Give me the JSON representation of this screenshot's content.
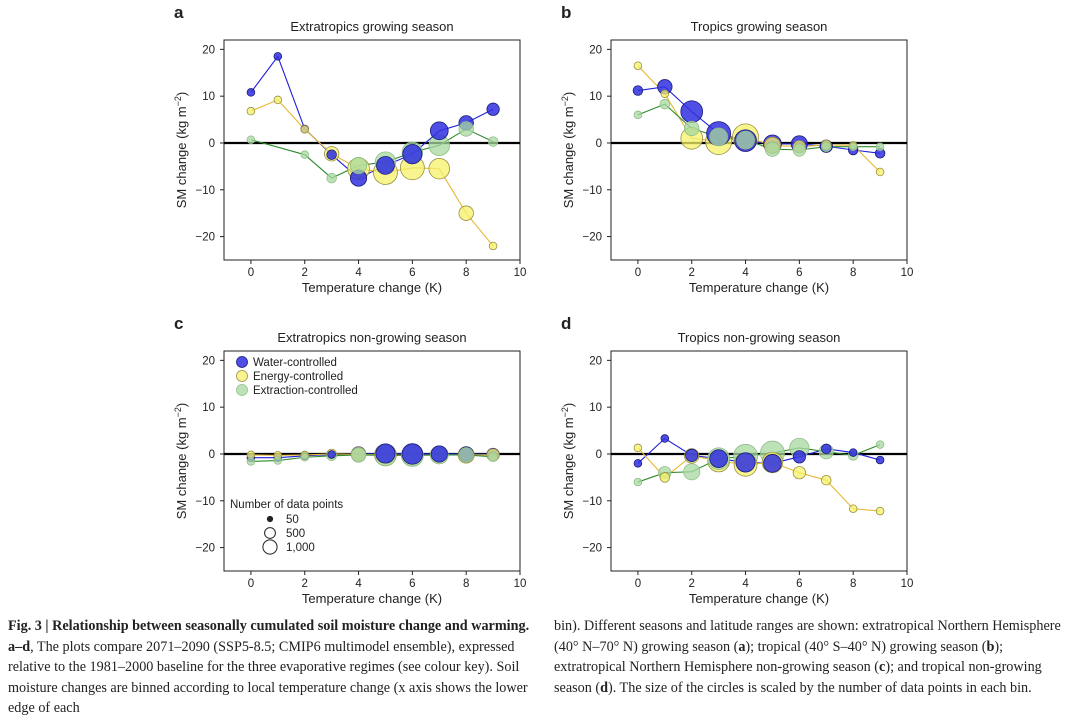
{
  "chart_data": [
    {
      "type": "line",
      "panel_letter": "a",
      "title": "Extratropics growing season",
      "xlabel": "Temperature change (K)",
      "ylabel": "SM change (kg m−2)",
      "xlim": [
        -1,
        10
      ],
      "ylim": [
        -25,
        22
      ],
      "xticks": [
        0,
        2,
        4,
        6,
        8,
        10
      ],
      "yticks": [
        -20,
        -10,
        0,
        10,
        20
      ],
      "series": [
        {
          "name": "Water-controlled",
          "color": "#2020d8",
          "x": [
            0,
            1,
            2,
            3,
            4,
            5,
            6,
            7,
            8,
            9
          ],
          "y": [
            10.8,
            18.5,
            3.0,
            -2.5,
            -7.5,
            -4.8,
            -2.4,
            2.6,
            4.3,
            7.2
          ],
          "n": [
            50,
            50,
            50,
            100,
            400,
            500,
            600,
            500,
            300,
            200
          ]
        },
        {
          "name": "Energy-controlled",
          "color": "#e8b830",
          "x": [
            0,
            1,
            2,
            3,
            4,
            5,
            6,
            7,
            8,
            9
          ],
          "y": [
            6.8,
            9.2,
            2.9,
            -2.3,
            -5.5,
            -6.3,
            -5.3,
            -5.5,
            -15.0,
            -22.0
          ],
          "n": [
            50,
            50,
            50,
            300,
            800,
            1000,
            1000,
            700,
            300,
            50
          ]
        },
        {
          "name": "Extraction-controlled",
          "color": "#2e8b2e",
          "x": [
            0,
            2,
            3,
            4,
            5,
            6,
            7,
            8,
            9
          ],
          "y": [
            0.7,
            -2.5,
            -7.5,
            -4.8,
            -4.1,
            -2.0,
            -0.5,
            3.0,
            0.3
          ],
          "n": [
            50,
            50,
            100,
            400,
            700,
            700,
            700,
            300,
            100
          ]
        }
      ]
    },
    {
      "type": "line",
      "panel_letter": "b",
      "title": "Tropics growing season",
      "xlabel": "Temperature change (K)",
      "ylabel": "SM change (kg m−2)",
      "xlim": [
        -1,
        10
      ],
      "ylim": [
        -25,
        22
      ],
      "xticks": [
        0,
        2,
        4,
        6,
        8,
        10
      ],
      "yticks": [
        -20,
        -10,
        0,
        10,
        20
      ],
      "series": [
        {
          "name": "Water-controlled",
          "color": "#2020d8",
          "x": [
            0,
            1,
            2,
            3,
            4,
            5,
            6,
            7,
            8,
            9
          ],
          "y": [
            11.2,
            12.0,
            6.7,
            2.0,
            0.5,
            -0.2,
            -0.2,
            -0.7,
            -1.5,
            -2.2
          ],
          "n": [
            100,
            300,
            800,
            1000,
            800,
            500,
            400,
            200,
            100,
            100
          ]
        },
        {
          "name": "Energy-controlled",
          "color": "#e8b830",
          "x": [
            0,
            1,
            2,
            3,
            4,
            5,
            6,
            7,
            8,
            9
          ],
          "y": [
            16.5,
            10.5,
            1.0,
            0.3,
            1.3,
            -0.5,
            -0.8,
            -0.4,
            -0.5,
            -6.2
          ],
          "n": [
            50,
            50,
            800,
            1200,
            1200,
            400,
            200,
            100,
            50,
            50
          ]
        },
        {
          "name": "Extraction-controlled",
          "color": "#2e8b2e",
          "x": [
            0,
            1,
            2,
            3,
            4,
            5,
            6,
            7,
            8,
            9
          ],
          "y": [
            6.0,
            8.3,
            3.1,
            1.3,
            0.6,
            -1.3,
            -1.5,
            -0.8,
            -0.8,
            -0.8
          ],
          "n": [
            50,
            100,
            300,
            500,
            500,
            300,
            200,
            100,
            50,
            50
          ]
        }
      ]
    },
    {
      "type": "line",
      "panel_letter": "c",
      "title": "Extratropics non-growing season",
      "xlabel": "Temperature change (K)",
      "ylabel": "SM change (kg m−2)",
      "xlim": [
        -1,
        10
      ],
      "ylim": [
        -25,
        22
      ],
      "xticks": [
        0,
        2,
        4,
        6,
        8,
        10
      ],
      "yticks": [
        -20,
        -10,
        0,
        10,
        20
      ],
      "legend": {
        "items": [
          "Water-controlled",
          "Energy-controlled",
          "Extraction-controlled"
        ],
        "size_title": "Number of data points",
        "size_labels": [
          "50",
          "500",
          "1,000"
        ]
      },
      "series": [
        {
          "name": "Water-controlled",
          "color": "#2020d8",
          "x": [
            0,
            1,
            2,
            3,
            4,
            5,
            6,
            7,
            8,
            9
          ],
          "y": [
            -0.8,
            -0.8,
            -0.4,
            -0.1,
            0.0,
            0.1,
            0.0,
            0.0,
            0.0,
            -0.1
          ],
          "n": [
            50,
            50,
            50,
            50,
            300,
            600,
            700,
            400,
            300,
            200
          ]
        },
        {
          "name": "Energy-controlled",
          "color": "#e8b830",
          "x": [
            0,
            1,
            2,
            3,
            4,
            5,
            6,
            7,
            8,
            9
          ],
          "y": [
            -0.2,
            -0.3,
            -0.2,
            0.0,
            -0.1,
            -0.2,
            -0.3,
            -0.2,
            -0.2,
            -0.2
          ],
          "n": [
            50,
            50,
            50,
            100,
            300,
            800,
            800,
            500,
            400,
            200
          ]
        },
        {
          "name": "Extraction-controlled",
          "color": "#2e8b2e",
          "x": [
            0,
            1,
            2,
            3,
            4,
            5,
            6,
            7,
            8,
            9
          ],
          "y": [
            -1.6,
            -1.4,
            -0.7,
            -0.4,
            -0.2,
            -0.3,
            -0.3,
            -0.2,
            -0.2,
            -0.6
          ],
          "n": [
            50,
            50,
            50,
            100,
            300,
            700,
            800,
            500,
            300,
            100
          ]
        }
      ]
    },
    {
      "type": "line",
      "panel_letter": "d",
      "title": "Tropics non-growing season",
      "xlabel": "Temperature change (K)",
      "ylabel": "SM change (kg m−2)",
      "xlim": [
        -1,
        10
      ],
      "ylim": [
        -25,
        22
      ],
      "xticks": [
        0,
        2,
        4,
        6,
        8,
        10
      ],
      "yticks": [
        -20,
        -10,
        0,
        10,
        20
      ],
      "series": [
        {
          "name": "Water-controlled",
          "color": "#2020d8",
          "x": [
            0,
            1,
            2,
            3,
            4,
            5,
            6,
            7,
            8,
            9
          ],
          "y": [
            -2.0,
            3.3,
            -0.3,
            -1.0,
            -1.8,
            -2.0,
            -0.6,
            1.1,
            0.3,
            -1.3
          ],
          "n": [
            50,
            50,
            200,
            500,
            600,
            500,
            200,
            100,
            50,
            50
          ]
        },
        {
          "name": "Energy-controlled",
          "color": "#e8b830",
          "x": [
            0,
            1,
            2,
            3,
            4,
            5,
            6,
            7,
            8,
            9
          ],
          "y": [
            1.3,
            -5.0,
            -0.4,
            -1.5,
            -2.3,
            -1.8,
            -4.0,
            -5.6,
            -11.7,
            -12.2
          ],
          "n": [
            50,
            100,
            300,
            800,
            900,
            700,
            200,
            100,
            50,
            50
          ]
        },
        {
          "name": "Extraction-controlled",
          "color": "#2e8b2e",
          "x": [
            0,
            1,
            2,
            3,
            4,
            5,
            6,
            7,
            8,
            9
          ],
          "y": [
            -6.0,
            -4.0,
            -3.8,
            -1.0,
            -0.5,
            0.2,
            1.3,
            0.5,
            -0.3,
            2.0
          ],
          "n": [
            50,
            200,
            400,
            800,
            1000,
            1000,
            600,
            300,
            100,
            50
          ]
        }
      ]
    }
  ],
  "caption": {
    "figure_label": "Fig. 3 | Relationship between seasonally cumulated soil moisture change and warming.",
    "panels_ref": "a–d",
    "left_rest": ", The plots compare 2071–2090 (SSP5-8.5; CMIP6 multimodel ensemble), expressed relative to the 1981–2000 baseline for the three evaporative regimes (see colour key). Soil moisture changes are binned according to local temperature change (x axis shows the lower edge of each",
    "right_p1": "bin). Different seasons and latitude ranges are shown: extratropical Northern Hemisphere (40° N–70° N) growing season (",
    "ref_a": "a",
    "right_p2": "); tropical (40° S–40° N) growing season (",
    "ref_b": "b",
    "right_p3": "); extratropical Northern Hemisphere non-growing season (",
    "ref_c": "c",
    "right_p4": "); and tropical non-growing season (",
    "ref_d": "d",
    "right_p5": "). The size of the circles is scaled by the number of data points in each bin."
  }
}
